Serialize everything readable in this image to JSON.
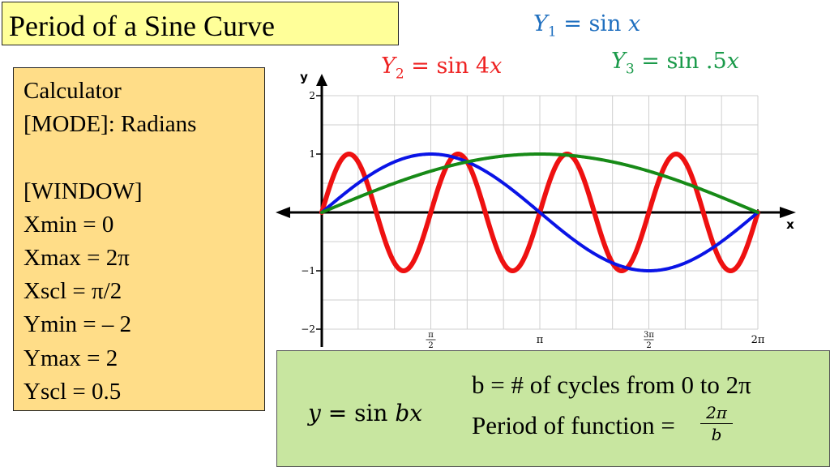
{
  "title": "Period of a Sine Curve",
  "calculator": {
    "lines": [
      "Calculator",
      "[MODE]: Radians",
      "",
      "[WINDOW]",
      "Xmin = 0",
      "Xmax = 2π",
      "Xscl = π/2",
      "Ymin =  – 2",
      "Ymax = 2",
      "Yscl = 0.5"
    ]
  },
  "equations": {
    "y1": {
      "sym": "Y",
      "sub": "1",
      "rhs": "= sin",
      "var": "x",
      "color": "#1f6fbf"
    },
    "y2": {
      "sym": "Y",
      "sub": "2",
      "rhs": "= sin 4",
      "var": "x",
      "color": "#ee2222"
    },
    "y3": {
      "sym": "Y",
      "sub": "3",
      "rhs": "= sin .5",
      "var": "x",
      "color": "#1a9a4a"
    }
  },
  "info": {
    "formula_y": "y",
    "formula_rhs": "= sin",
    "formula_bx": "bx",
    "line1": "b = # of cycles from 0 to 2π",
    "line2": "Period of function = ",
    "frac_num": "2π",
    "frac_den": "b"
  },
  "colors": {
    "title_bg": "#ffff99",
    "calc_bg": "#ffdd88",
    "info_bg": "#c8e6a0"
  },
  "chart_data": {
    "type": "line",
    "xlabel": "x",
    "ylabel": "y",
    "xlim": [
      0,
      6.2832
    ],
    "ylim": [
      -2,
      2
    ],
    "grid": true,
    "x_tick_labels": [
      {
        "num": "π",
        "den": "2",
        "value": 1.5708
      },
      {
        "label": "π",
        "value": 3.1416
      },
      {
        "num": "3π",
        "den": "2",
        "value": 4.7124
      },
      {
        "label": "2π",
        "value": 6.2832
      }
    ],
    "y_tick_labels": [
      {
        "label": "2",
        "value": 2
      },
      {
        "label": "1",
        "value": 1
      },
      {
        "label": "−1",
        "value": -1
      },
      {
        "label": "−2",
        "value": -2
      }
    ],
    "series": [
      {
        "function": "sin x",
        "b": 1,
        "color": "#0a14e6"
      },
      {
        "function": "sin 4x",
        "b": 4,
        "color": "#ee1111"
      },
      {
        "function": "sin .5x",
        "b": 0.5,
        "color": "#178a17"
      }
    ]
  }
}
